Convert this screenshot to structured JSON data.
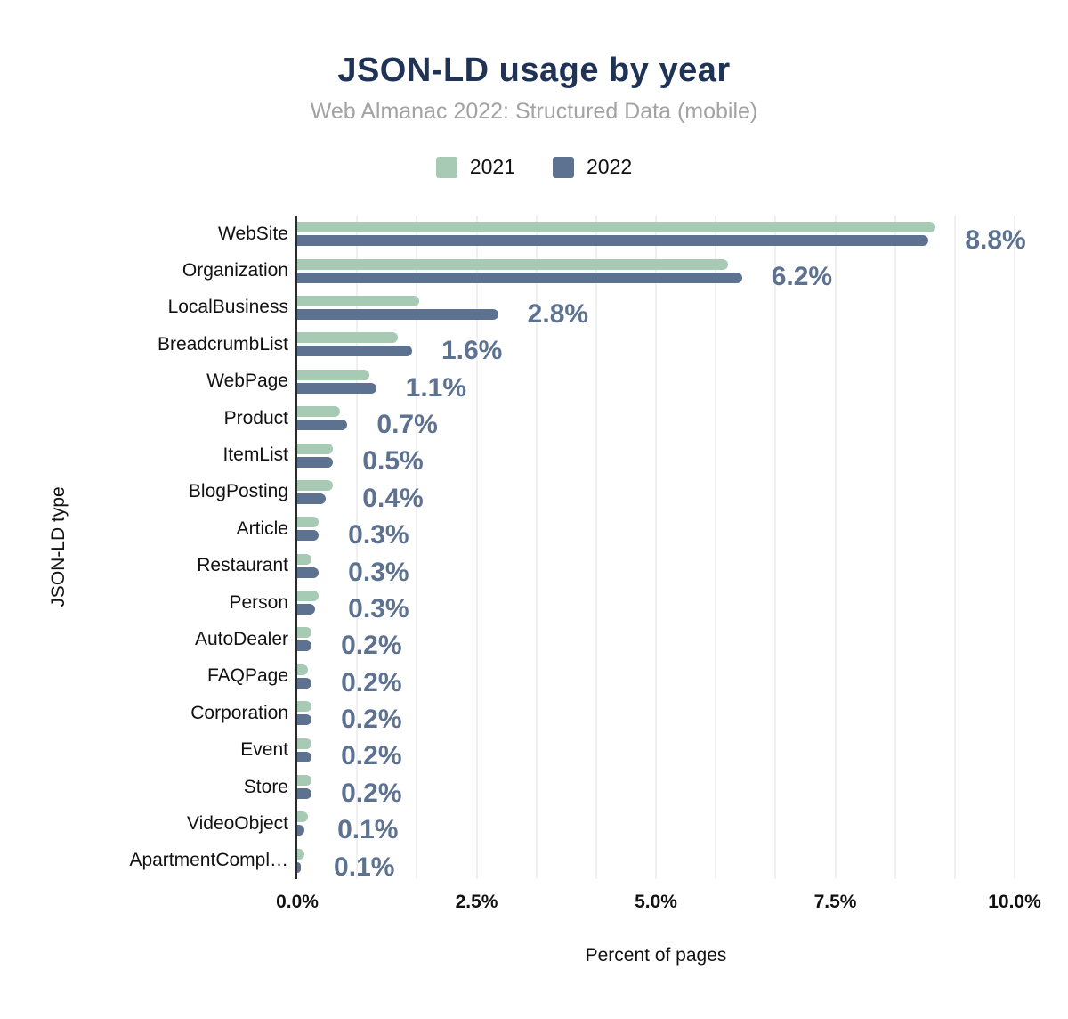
{
  "header": {
    "title": "JSON-LD usage by year",
    "subtitle": "Web Almanac 2022: Structured Data (mobile)"
  },
  "legend": {
    "items": [
      {
        "label": "2021",
        "color": "#a6cab4"
      },
      {
        "label": "2022",
        "color": "#5d7190"
      }
    ]
  },
  "colors": {
    "title": "#1e3356",
    "subtitle": "#a3a3a3",
    "series_2021": "#a6cab4",
    "series_2022": "#5d7190",
    "value_label": "#5d7190",
    "axis_line": "#2b2b2b",
    "gridline": "#f0f0f0",
    "background": "#ffffff"
  },
  "chart_data": {
    "type": "bar",
    "orientation": "horizontal",
    "title": "JSON-LD usage by year",
    "subtitle": "Web Almanac 2022: Structured Data (mobile)",
    "xlabel": "Percent of pages",
    "ylabel": "JSON-LD type",
    "xlim": [
      0,
      10
    ],
    "x_tick_values": [
      0,
      2.5,
      5,
      7.5,
      10
    ],
    "x_tick_labels": [
      "0.0%",
      "2.5%",
      "5.0%",
      "7.5%",
      "10.0%"
    ],
    "grid": "vertical minor gridlines every 0.833%",
    "legend_position": "top",
    "categories": [
      "WebSite",
      "Organization",
      "LocalBusiness",
      "BreadcrumbList",
      "WebPage",
      "Product",
      "ItemList",
      "BlogPosting",
      "Article",
      "Restaurant",
      "Person",
      "AutoDealer",
      "FAQPage",
      "Corporation",
      "Event",
      "Store",
      "VideoObject",
      "ApartmentCompl…"
    ],
    "series": [
      {
        "name": "2021",
        "color": "#a6cab4",
        "values": [
          8.9,
          6.0,
          1.7,
          1.4,
          1.0,
          0.6,
          0.5,
          0.5,
          0.3,
          0.2,
          0.3,
          0.2,
          0.15,
          0.2,
          0.2,
          0.2,
          0.15,
          0.1
        ]
      },
      {
        "name": "2022",
        "color": "#5d7190",
        "values": [
          8.8,
          6.2,
          2.8,
          1.6,
          1.1,
          0.7,
          0.5,
          0.4,
          0.3,
          0.3,
          0.25,
          0.2,
          0.2,
          0.2,
          0.2,
          0.2,
          0.1,
          0.05
        ]
      }
    ],
    "value_labels_2022": [
      "8.8%",
      "6.2%",
      "2.8%",
      "1.6%",
      "1.1%",
      "0.7%",
      "0.5%",
      "0.4%",
      "0.3%",
      "0.3%",
      "0.3%",
      "0.2%",
      "0.2%",
      "0.2%",
      "0.2%",
      "0.2%",
      "0.1%",
      "0.1%"
    ]
  }
}
